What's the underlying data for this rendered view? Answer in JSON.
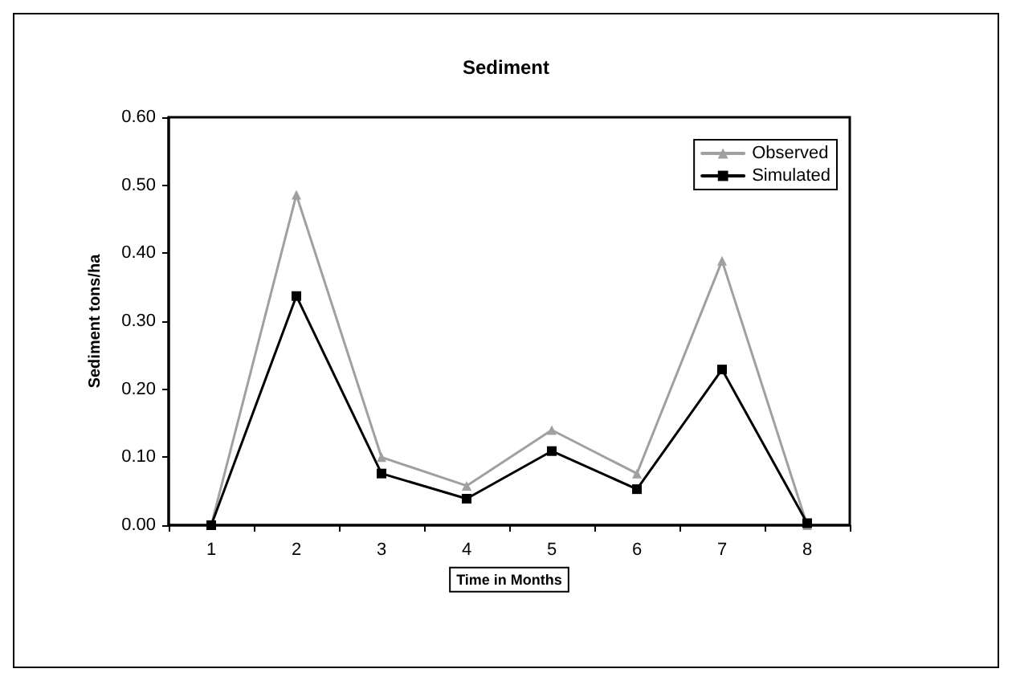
{
  "chart_data": {
    "type": "line",
    "title": "Sediment",
    "xlabel": "Time in Months",
    "ylabel": "Sediment tons/ha",
    "categories": [
      "1",
      "2",
      "3",
      "4",
      "5",
      "6",
      "7",
      "8"
    ],
    "series": [
      {
        "name": "Observed",
        "color": "#a0a0a0",
        "marker": "triangle",
        "values": [
          0,
          0.486,
          0.1,
          0.058,
          0.14,
          0.076,
          0.389,
          0
        ]
      },
      {
        "name": "Simulated",
        "color": "#000000",
        "marker": "square",
        "values": [
          0,
          0.337,
          0.076,
          0.039,
          0.109,
          0.053,
          0.229,
          0.003
        ]
      }
    ],
    "ylim": [
      0,
      0.6
    ],
    "yticks": [
      {
        "value": 0,
        "label": "0.00"
      },
      {
        "value": 0.1,
        "label": "0.10"
      },
      {
        "value": 0.2,
        "label": "0.20"
      },
      {
        "value": 0.3,
        "label": "0.30"
      },
      {
        "value": 0.4,
        "label": "0.40"
      },
      {
        "value": 0.5,
        "label": "0.50"
      },
      {
        "value": 0.6,
        "label": "0.60"
      }
    ],
    "grid": false,
    "legend": "top right",
    "line_style": "solid"
  }
}
